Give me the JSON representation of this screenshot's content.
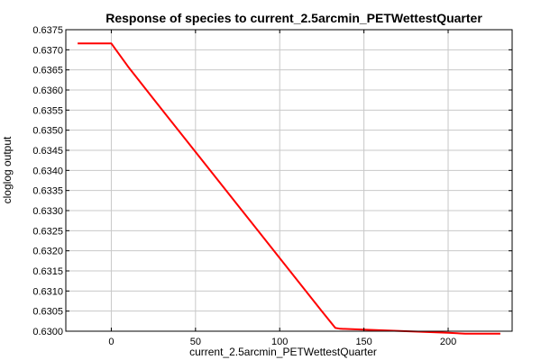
{
  "chart_data": {
    "type": "line",
    "title": "Response of species to current_2.5arcmin_PETWettestQuarter",
    "xlabel": "current_2.5arcmin_PETWettestQuarter",
    "ylabel": "cloglog output",
    "xlim": [
      -27,
      238
    ],
    "ylim": [
      0.63,
      0.6375
    ],
    "x_ticks": [
      0,
      50,
      100,
      150,
      200
    ],
    "y_ticks": [
      0.63,
      0.6305,
      0.631,
      0.6315,
      0.632,
      0.6325,
      0.633,
      0.6335,
      0.634,
      0.6345,
      0.635,
      0.6355,
      0.636,
      0.6365,
      0.637,
      0.6375
    ],
    "y_tick_labels": [
      "0.6300",
      "0.6305",
      "0.6310",
      "0.6315",
      "0.6320",
      "0.6325",
      "0.6330",
      "0.6335",
      "0.6340",
      "0.6345",
      "0.6350",
      "0.6355",
      "0.6360",
      "0.6365",
      "0.6370",
      "0.6375"
    ],
    "grid": true,
    "line_color": "#ff0000",
    "series": [
      {
        "x": [
          -20,
          0,
          10,
          25,
          50,
          75,
          100,
          125,
          133,
          136,
          150,
          175,
          200,
          210,
          231
        ],
        "y": [
          0.63716,
          0.63716,
          0.63658,
          0.63578,
          0.63446,
          0.63314,
          0.63182,
          0.6305,
          0.63008,
          0.63006,
          0.63004,
          0.63,
          0.62996,
          0.62994,
          0.62994
        ]
      }
    ]
  }
}
